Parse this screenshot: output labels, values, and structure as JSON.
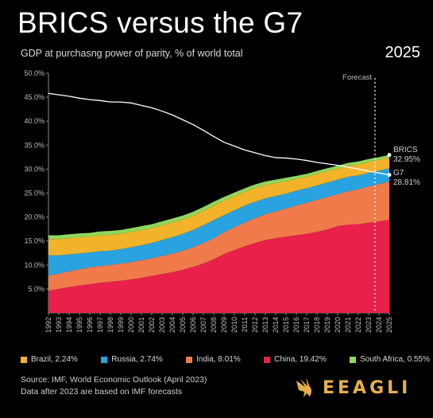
{
  "title": "BRICS versus the G7",
  "subtitle": "GDP at purchasng power of parity, % of world total",
  "year_label": "2025",
  "source_lines": [
    "Source: IMF, World Economic Outlook (April 2023)",
    "Data after 2023 are based on IMF forecasts"
  ],
  "logo_text": "EEAGLI",
  "colors": {
    "china": "#e8204a",
    "india": "#f07a4a",
    "russia": "#29a3e0",
    "brazil": "#f2b32a",
    "south_africa": "#8ed85a",
    "g7": "#ffffff",
    "background": "#000000"
  },
  "chart_data": {
    "type": "area",
    "stacked": true,
    "x": [
      1992,
      1993,
      1994,
      1995,
      1996,
      1997,
      1998,
      1999,
      2000,
      2001,
      2002,
      2003,
      2004,
      2005,
      2006,
      2007,
      2008,
      2009,
      2010,
      2011,
      2012,
      2013,
      2014,
      2015,
      2016,
      2017,
      2018,
      2019,
      2020,
      2021,
      2022,
      2023,
      2024,
      2025
    ],
    "ylim": [
      0,
      50
    ],
    "y_ticks": [
      "5.0%",
      "10.0%",
      "15.0%",
      "20.0%",
      "25.0%",
      "30.0%",
      "35.0%",
      "40.0%",
      "45.0%",
      "50.0%"
    ],
    "series": [
      {
        "name": "China, 19.42%",
        "key": "china",
        "values": [
          4.6,
          5.0,
          5.4,
          5.7,
          6.0,
          6.3,
          6.5,
          6.7,
          7.0,
          7.3,
          7.7,
          8.1,
          8.5,
          9.0,
          9.6,
          10.3,
          11.2,
          12.3,
          13.1,
          13.9,
          14.6,
          15.2,
          15.6,
          15.9,
          16.2,
          16.5,
          16.9,
          17.4,
          18.1,
          18.4,
          18.5,
          18.8,
          19.1,
          19.42
        ]
      },
      {
        "name": "India, 8.01%",
        "key": "india",
        "values": [
          3.2,
          3.2,
          3.3,
          3.4,
          3.5,
          3.5,
          3.5,
          3.6,
          3.6,
          3.7,
          3.7,
          3.8,
          3.9,
          4.0,
          4.1,
          4.3,
          4.4,
          4.6,
          4.8,
          5.0,
          5.2,
          5.4,
          5.6,
          5.9,
          6.2,
          6.5,
          6.7,
          6.8,
          6.7,
          7.0,
          7.3,
          7.6,
          7.8,
          8.01
        ]
      },
      {
        "name": "Russia, 2.74%",
        "key": "russia",
        "values": [
          4.2,
          3.8,
          3.5,
          3.3,
          3.1,
          3.1,
          3.0,
          3.0,
          3.1,
          3.1,
          3.2,
          3.3,
          3.4,
          3.5,
          3.6,
          3.7,
          3.8,
          3.5,
          3.5,
          3.5,
          3.4,
          3.3,
          3.2,
          3.1,
          3.1,
          3.0,
          3.0,
          3.0,
          3.0,
          3.0,
          2.9,
          2.8,
          2.8,
          2.74
        ]
      },
      {
        "name": "Brazil, 2.24%",
        "key": "brazil",
        "values": [
          3.4,
          3.4,
          3.4,
          3.4,
          3.3,
          3.3,
          3.3,
          3.2,
          3.2,
          3.2,
          3.1,
          3.1,
          3.1,
          3.0,
          3.0,
          3.0,
          3.0,
          3.0,
          3.0,
          2.9,
          2.9,
          2.8,
          2.7,
          2.6,
          2.5,
          2.4,
          2.4,
          2.4,
          2.3,
          2.3,
          2.3,
          2.3,
          2.25,
          2.24
        ]
      },
      {
        "name": "South Africa, 0.55%",
        "key": "south_africa",
        "values": [
          0.8,
          0.8,
          0.8,
          0.8,
          0.8,
          0.8,
          0.8,
          0.8,
          0.8,
          0.8,
          0.8,
          0.8,
          0.8,
          0.8,
          0.8,
          0.8,
          0.8,
          0.8,
          0.7,
          0.7,
          0.7,
          0.7,
          0.7,
          0.7,
          0.6,
          0.6,
          0.6,
          0.6,
          0.6,
          0.6,
          0.6,
          0.6,
          0.55,
          0.55
        ]
      }
    ],
    "lines": [
      {
        "name": "G7",
        "key": "g7",
        "values": [
          45.8,
          45.5,
          45.2,
          44.8,
          44.5,
          44.3,
          44.0,
          44.0,
          43.8,
          43.3,
          42.8,
          42.1,
          41.3,
          40.3,
          39.3,
          38.1,
          36.8,
          35.6,
          34.8,
          34.0,
          33.4,
          32.8,
          32.4,
          32.3,
          32.1,
          31.8,
          31.4,
          31.1,
          30.8,
          30.4,
          30.0,
          29.6,
          29.2,
          28.8
        ]
      }
    ],
    "end_labels": [
      {
        "name": "BRICS",
        "value": "32.95%"
      },
      {
        "name": "G7",
        "value": "28.81%"
      }
    ],
    "annotation": "Forecast",
    "forecast_start": 2023
  }
}
